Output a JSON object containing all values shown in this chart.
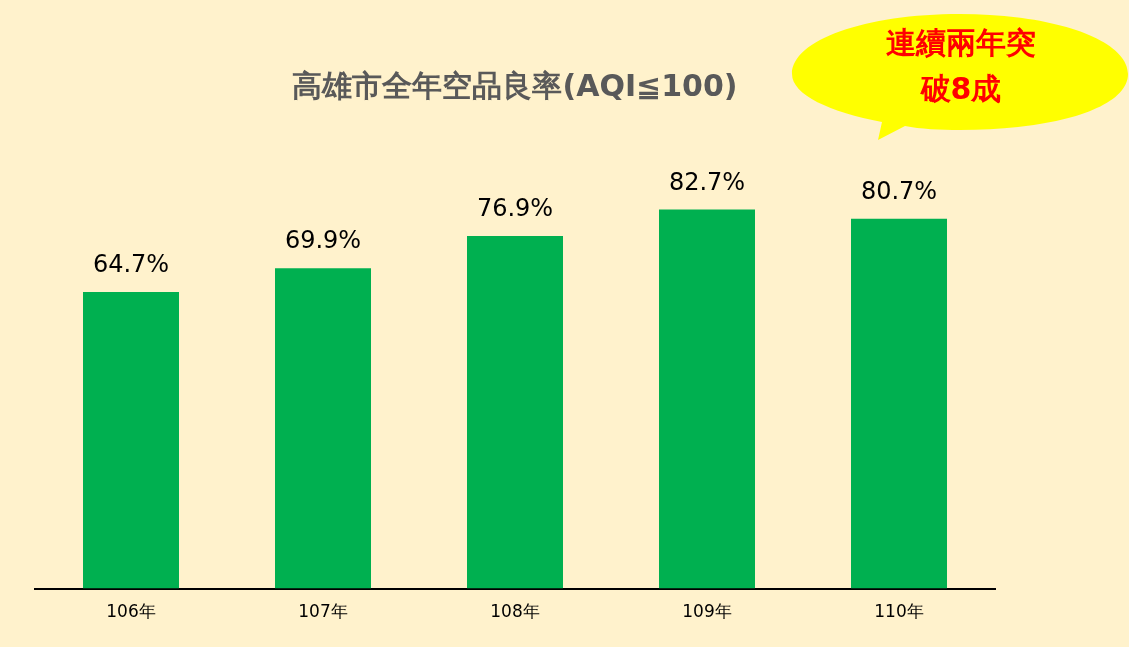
{
  "chart_data": {
    "type": "bar",
    "title": "高雄市全年空品良率(AQI≦100)",
    "categories": [
      "106年",
      "107年",
      "108年",
      "109年",
      "110年"
    ],
    "values": [
      64.7,
      69.9,
      76.9,
      82.7,
      80.7
    ],
    "value_labels": [
      "64.7%",
      "69.9%",
      "76.9%",
      "82.7%",
      "80.7%"
    ],
    "color": "#00b050",
    "tick_labels": "x",
    "grid": false,
    "legend": false,
    "annotations": [
      "連續兩年突破8成"
    ]
  }
}
